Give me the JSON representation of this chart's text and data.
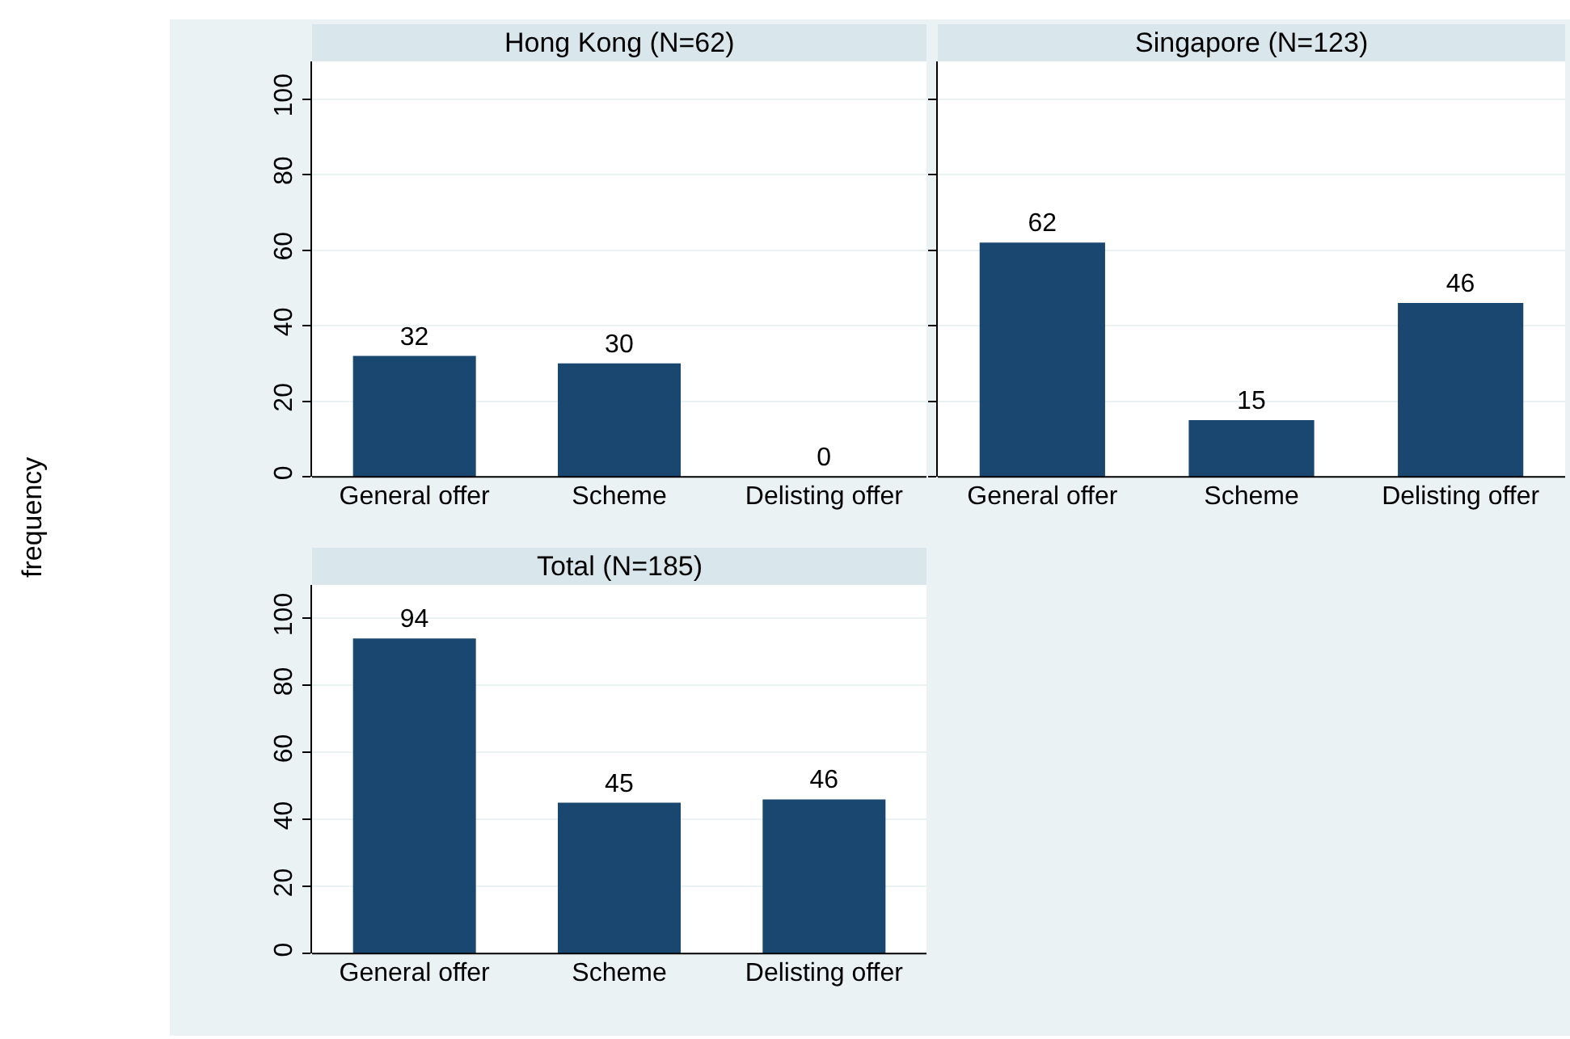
{
  "chart_data": [
    {
      "type": "bar",
      "title": "Hong Kong (N=62)",
      "ylabel": "frequency",
      "categories": [
        "General offer",
        "Scheme",
        "Delisting offer"
      ],
      "values": [
        32,
        30,
        0
      ],
      "color": "#1a476f",
      "ylim": [
        0,
        110
      ],
      "yticks": [
        0,
        20,
        40,
        60,
        80,
        100
      ],
      "grid": "y",
      "data_labels": true
    },
    {
      "type": "bar",
      "title": "Singapore (N=123)",
      "categories": [
        "General offer",
        "Scheme",
        "Delisting offer"
      ],
      "values": [
        62,
        15,
        46
      ],
      "color": "#1a476f",
      "ylim": [
        0,
        110
      ],
      "yticks": [
        0,
        20,
        40,
        60,
        80,
        100
      ],
      "grid": "y",
      "data_labels": true,
      "tick_labels": "x"
    },
    {
      "type": "bar",
      "title": "Total (N=185)",
      "categories": [
        "General offer",
        "Scheme",
        "Delisting offer"
      ],
      "values": [
        94,
        45,
        46
      ],
      "color": "#1a476f",
      "ylim": [
        0,
        110
      ],
      "yticks": [
        0,
        20,
        40,
        60,
        80,
        100
      ],
      "grid": "y",
      "data_labels": true
    }
  ]
}
